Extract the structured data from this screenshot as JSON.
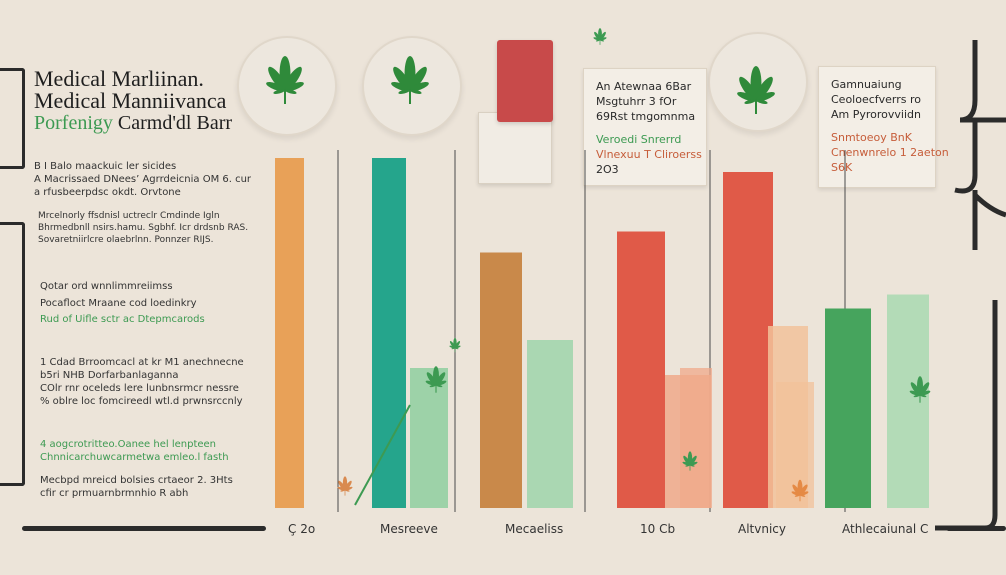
{
  "chart_data": {
    "type": "bar",
    "title_lines": [
      "Medical Marliinan.",
      "Medical Manniivanca"
    ],
    "subtitle_green": "Porfenigy",
    "subtitle_dark": "Carmd'dl Barr",
    "categories": [
      "Ç 2o",
      "Mesreeve",
      "Mecaeliss",
      "10 Cb",
      "Altvnicy",
      "Athlecaiunal C"
    ],
    "series": [
      {
        "values": [
          100,
          100,
          73,
          79,
          96,
          57
        ]
      },
      {
        "values": [
          null,
          40,
          48,
          38,
          52,
          61
        ]
      }
    ],
    "secondary_bars": [
      null,
      null,
      null,
      40,
      36,
      null
    ],
    "ylim": [
      0,
      100
    ],
    "colors": {
      "primary": [
        "#e8a158",
        "#25a58c",
        "#c9894a",
        "#e05a48",
        "#e05a48",
        "#46a45d"
      ],
      "secondary": [
        "#e8a158",
        "#8fcf9f",
        "#9fd5aa",
        "#f0a98a",
        "#f2c29a",
        "#a9d9b0"
      ]
    }
  },
  "notes": [
    "B  I Balo maackuic  ler sicides",
    "A Macrissaed DNees’ Agrrdeicnia OM 6. cur",
    "a  rfusbeerpdsc okdt.  Orvtone",
    "Mrcelnorly ffsdnisl uctreclr Cmdinde Igln",
    "Bhrmedbnll nsirs.hamu. Sgbhf. Icr drdsnb RAS.",
    "Sovaretniirlcre olaebrlnn. Ponnzer RIJS.",
    "Qotar ord  wnnlimmreiimss",
    "Pocafloct Mraane  cod loedinkry",
    "Rud of Uifle   sctr ac Dtepmcarods",
    "1  Cdad Brroomcacl  at kr M1 anechnecne",
    "b5ri NHB Dorfarbanlaganna",
    "COlr rnr oceleds lere lunbnsrmcr nessre",
    "  % oblre loc fomcireedl wtl.d prwnsrccnly",
    "4  aogcrotritteo.Oanee      hel lenpteen",
    "Chnnicarchuwcarmetwa  emleo.l fasth",
    "Mecbpd mreicd bolsies crtaeor 2. 3Hts",
    "cfir  cr prmuarnbrmnhio  R abh"
  ],
  "card1": {
    "l1": "An Atewnaa 6Bar",
    "l2": "Msgtuhrr 3 fOr",
    "l3": "69Rst tmgomnma",
    "l4": "Veroedi Snrerrd",
    "l5": "Vlnexuu  T Cliroerss",
    "l6": "2O3"
  },
  "card2": {
    "l1": "Gamnuaiung",
    "l2": "Ceoloecfverrs ro",
    "l3": "Am Pyrorovviidn",
    "l4": "Snmtoeoy BnK",
    "l5": "Cnenwnrelo 1 2aeton",
    "l6": "S6K"
  },
  "icons": {
    "leaf": "cannabis-leaf-icon",
    "product": "product-box-icon"
  }
}
